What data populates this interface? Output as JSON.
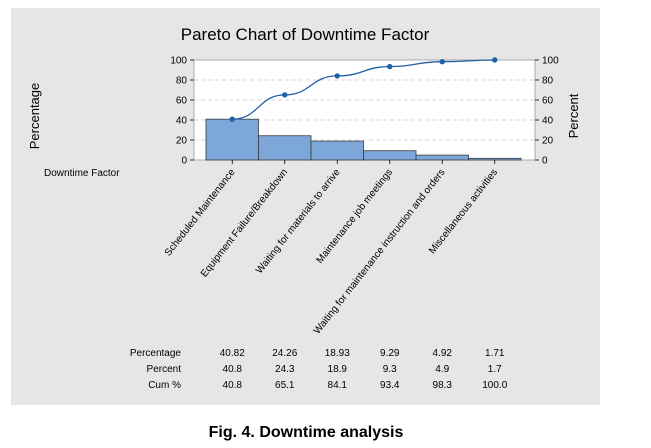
{
  "caption": "Fig. 4. Downtime analysis",
  "colors": {
    "panel": "#e6e6e6",
    "plot_area": "#ffffff",
    "bar_fill": "#7da7d9",
    "bar_stroke": "#3a3a3a",
    "line": "#1f5fa8",
    "gridline": "#c8c8c8"
  },
  "chart_data": {
    "type": "bar",
    "title": "Pareto Chart of Downtime Factor",
    "xlabel": "Downtime Factor",
    "ylabel_left": "Percentage",
    "ylabel_right": "Percent",
    "ylim": [
      0,
      100
    ],
    "yticks": [
      0,
      20,
      40,
      60,
      80,
      100
    ],
    "grid": "horizontal dashed",
    "categories": [
      "Scheduled Maintenance",
      "Equipment Failure/Breakdown",
      "Waiting for materials to arrive",
      "Maintenance job meetings",
      "Waiting for maintenance instruction and orders",
      "Miscellaneous activities"
    ],
    "series": [
      {
        "name": "Percentage",
        "kind": "bar",
        "values": [
          40.82,
          24.26,
          18.93,
          9.29,
          4.92,
          1.71
        ]
      },
      {
        "name": "Cum %",
        "kind": "line",
        "values": [
          40.8,
          65.1,
          84.1,
          93.4,
          98.3,
          100.0
        ]
      }
    ],
    "table": {
      "rows": [
        {
          "label": "Percentage",
          "values": [
            "40.82",
            "24.26",
            "18.93",
            "9.29",
            "4.92",
            "1.71"
          ]
        },
        {
          "label": "Percent",
          "values": [
            "40.8",
            "24.3",
            "18.9",
            "9.3",
            "4.9",
            "1.7"
          ]
        },
        {
          "label": "Cum %",
          "values": [
            "40.8",
            "65.1",
            "84.1",
            "93.4",
            "98.3",
            "100.0"
          ]
        }
      ]
    }
  }
}
